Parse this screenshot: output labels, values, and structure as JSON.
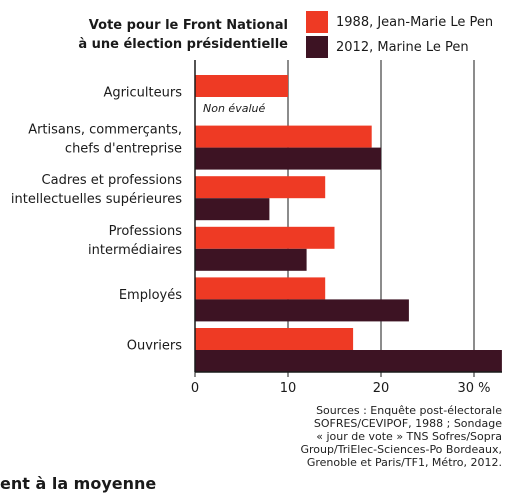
{
  "title_line1": "Vote pour le Front National",
  "title_line2": "à une élection présidentielle",
  "legend": [
    {
      "label": "1988, Jean-Marie Le Pen",
      "color": "#ee3a24"
    },
    {
      "label": "2012, Marine Le Pen",
      "color": "#3d1323"
    }
  ],
  "chart_data": {
    "type": "bar",
    "orientation": "horizontal",
    "categories": [
      [
        "Agriculteurs"
      ],
      [
        "Artisans, commerçants,",
        "chefs d'entreprise"
      ],
      [
        "Cadres et professions",
        "intellectuelles supérieures"
      ],
      [
        "Professions",
        "intermédiaires"
      ],
      [
        "Employés"
      ],
      [
        "Ouvriers"
      ]
    ],
    "series": [
      {
        "name": "1988, Jean-Marie Le Pen",
        "color": "#ee3a24",
        "values": [
          10,
          19,
          14,
          15,
          14,
          17
        ]
      },
      {
        "name": "2012, Marine Le Pen",
        "color": "#3d1323",
        "values": [
          null,
          20,
          8,
          12,
          23,
          33
        ]
      }
    ],
    "annotations": [
      {
        "category_index": 0,
        "series_index": 1,
        "text": "Non évalué"
      }
    ],
    "xlim": [
      0,
      33
    ],
    "xticks": [
      0,
      10,
      20,
      30
    ],
    "xtick_labels": [
      "0",
      "10",
      "20",
      "30 %"
    ],
    "grid": true
  },
  "sources": [
    "Sources : Enquête post-électorale",
    "SOFRES/CEVIPOF, 1988 ; Sondage",
    "« jour de vote » TNS Sofres/Sopra",
    "Group/TriElec-Sciences-Po Bordeaux,",
    "Grenoble et Paris/TF1, Métro, 2012."
  ],
  "cut_heading": "ent à la moyenne"
}
